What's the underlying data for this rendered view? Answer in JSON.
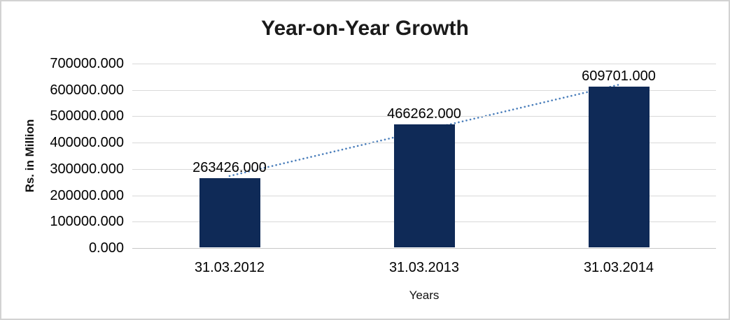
{
  "chart_data": {
    "type": "bar",
    "title": "Year-on-Year Growth",
    "categories": [
      "31.03.2012",
      "31.03.2013",
      "31.03.2014"
    ],
    "values": [
      263426.0,
      466262.0,
      609701.0
    ],
    "value_labels": [
      "263426.000",
      "466262.000",
      "609701.000"
    ],
    "xlabel": "Years",
    "ylabel": "Rs. in Million",
    "ylim": [
      0,
      700000
    ],
    "ytick_step": 100000,
    "ytick_labels": [
      "0.000",
      "100000.000",
      "200000.000",
      "300000.000",
      "400000.000",
      "500000.000",
      "600000.000",
      "700000.000"
    ],
    "grid": true,
    "legend": "none",
    "trendline": {
      "fit": "linear",
      "style": "dotted"
    },
    "colors": {
      "bar": "#0f2a57",
      "trendline": "#4a7ebb",
      "gridline": "#d9d9d9",
      "axis_line": "#c6c6c6",
      "text": "#000000",
      "frame_border": "#d2d2d2",
      "background": "#ffffff"
    }
  }
}
